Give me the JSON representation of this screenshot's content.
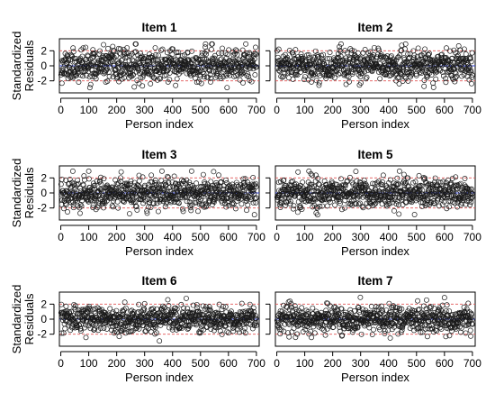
{
  "chart_data": [
    {
      "type": "scatter",
      "title": "Item 1",
      "xlabel": "Person index",
      "ylabel": "Standardized\nResiduals",
      "xlim": [
        -5,
        710
      ],
      "ylim": [
        -3.6,
        3.6
      ],
      "xticks": [
        0,
        100,
        200,
        300,
        400,
        500,
        600,
        700
      ],
      "yticks": [
        -2,
        0,
        2
      ],
      "show_xlabel": true,
      "show_ylabel": true,
      "show_ytick_labels": true,
      "reference_lines": {
        "zero": 0,
        "bands": [
          -2,
          2
        ],
        "zero_color": "#2f3fd0",
        "band_color": "#e15555"
      },
      "n_points": 700,
      "seed": 11,
      "residual_sd": 1.05
    },
    {
      "type": "scatter",
      "title": "Item 2",
      "xlabel": "Person index",
      "ylabel": "",
      "xlim": [
        -5,
        710
      ],
      "ylim": [
        -3.6,
        3.6
      ],
      "xticks": [
        0,
        100,
        200,
        300,
        400,
        500,
        600,
        700
      ],
      "yticks": [
        -2,
        0,
        2
      ],
      "show_xlabel": true,
      "show_ylabel": false,
      "show_ytick_labels": false,
      "reference_lines": {
        "zero": 0,
        "bands": [
          -2,
          2
        ],
        "zero_color": "#2f3fd0",
        "band_color": "#e15555"
      },
      "n_points": 700,
      "seed": 23,
      "residual_sd": 1.0
    },
    {
      "type": "scatter",
      "title": "Item 3",
      "xlabel": "Person index",
      "ylabel": "Standardized\nResiduals",
      "xlim": [
        -5,
        710
      ],
      "ylim": [
        -3.6,
        3.6
      ],
      "xticks": [
        0,
        100,
        200,
        300,
        400,
        500,
        600,
        700
      ],
      "yticks": [
        -2,
        0,
        2
      ],
      "show_xlabel": true,
      "show_ylabel": true,
      "show_ytick_labels": true,
      "reference_lines": {
        "zero": 0,
        "bands": [
          -2,
          2
        ],
        "zero_color": "#2f3fd0",
        "band_color": "#e15555"
      },
      "n_points": 700,
      "seed": 37,
      "residual_sd": 1.0
    },
    {
      "type": "scatter",
      "title": "Item 5",
      "xlabel": "Person index",
      "ylabel": "",
      "xlim": [
        -5,
        710
      ],
      "ylim": [
        -3.6,
        3.6
      ],
      "xticks": [
        0,
        100,
        200,
        300,
        400,
        500,
        600,
        700
      ],
      "yticks": [
        -2,
        0,
        2
      ],
      "show_xlabel": true,
      "show_ylabel": false,
      "show_ytick_labels": false,
      "reference_lines": {
        "zero": 0,
        "bands": [
          -2,
          2
        ],
        "zero_color": "#2f3fd0",
        "band_color": "#e15555"
      },
      "n_points": 700,
      "seed": 41,
      "residual_sd": 1.0
    },
    {
      "type": "scatter",
      "title": "Item 6",
      "xlabel": "Person index",
      "ylabel": "Standardized\nResiduals",
      "xlim": [
        -5,
        710
      ],
      "ylim": [
        -3.6,
        3.6
      ],
      "xticks": [
        0,
        100,
        200,
        300,
        400,
        500,
        600,
        700
      ],
      "yticks": [
        -2,
        0,
        2
      ],
      "show_xlabel": true,
      "show_ylabel": true,
      "show_ytick_labels": true,
      "reference_lines": {
        "zero": 0,
        "bands": [
          -2,
          2
        ],
        "zero_color": "#2f3fd0",
        "band_color": "#e15555"
      },
      "n_points": 700,
      "seed": 53,
      "residual_sd": 0.85
    },
    {
      "type": "scatter",
      "title": "Item 7",
      "xlabel": "Person index",
      "ylabel": "",
      "xlim": [
        -5,
        710
      ],
      "ylim": [
        -3.6,
        3.6
      ],
      "xticks": [
        0,
        100,
        200,
        300,
        400,
        500,
        600,
        700
      ],
      "yticks": [
        -2,
        0,
        2
      ],
      "show_xlabel": true,
      "show_ylabel": false,
      "show_ytick_labels": false,
      "reference_lines": {
        "zero": 0,
        "bands": [
          -2,
          2
        ],
        "zero_color": "#2f3fd0",
        "band_color": "#e15555"
      },
      "n_points": 700,
      "seed": 67,
      "residual_sd": 0.9
    }
  ]
}
